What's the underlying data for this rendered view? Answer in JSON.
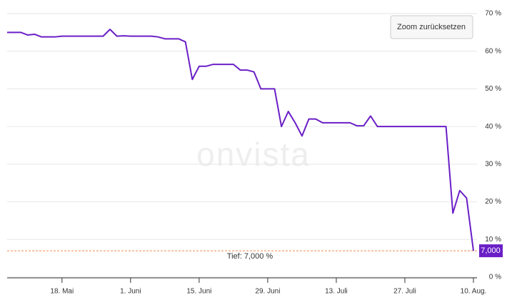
{
  "chart_data": {
    "type": "line",
    "categories": [
      null,
      null,
      null,
      null,
      null,
      null,
      null,
      null,
      "18. Mai",
      null,
      null,
      null,
      null,
      null,
      null,
      null,
      null,
      null,
      "1. Juni",
      null,
      null,
      null,
      null,
      null,
      null,
      null,
      null,
      null,
      "15. Juni",
      null,
      null,
      null,
      null,
      null,
      null,
      null,
      null,
      null,
      "29. Juni",
      null,
      null,
      null,
      null,
      null,
      null,
      null,
      null,
      null,
      "13. Juli",
      null,
      null,
      null,
      null,
      null,
      null,
      null,
      null,
      null,
      "27. Juli",
      null,
      null,
      null,
      null,
      null,
      null,
      null,
      null,
      null,
      "10. Aug."
    ],
    "series": [
      {
        "color": "#6a1fc6",
        "values": [
          65,
          65,
          65,
          64.3,
          64.5,
          63.8,
          63.8,
          63.8,
          64,
          64,
          64,
          64,
          64,
          64,
          64,
          65.8,
          64,
          64.1,
          64,
          64,
          64,
          64,
          63.8,
          63.3,
          63.3,
          63.3,
          62.5,
          52.5,
          56,
          56,
          56.5,
          56.5,
          56.5,
          56.5,
          55,
          55,
          54.5,
          50,
          50,
          50,
          40,
          44,
          41,
          37.5,
          42,
          42,
          41,
          41,
          41,
          41,
          41,
          40.2,
          40.2,
          42.8,
          40,
          40,
          40,
          40,
          40,
          40,
          40,
          40,
          40,
          40,
          40,
          17,
          23,
          21,
          7
        ]
      }
    ],
    "ylim": [
      0,
      70
    ],
    "yticks": [
      {
        "value": 0,
        "label": "0 %"
      },
      {
        "value": 10,
        "label": "10 %"
      },
      {
        "value": 20,
        "label": "20 %"
      },
      {
        "value": 30,
        "label": "30 %"
      },
      {
        "value": 40,
        "label": "40 %"
      },
      {
        "value": 50,
        "label": "50 %"
      },
      {
        "value": 60,
        "label": "60 %"
      },
      {
        "value": 70,
        "label": "70 %"
      }
    ],
    "grid": true,
    "low_line": {
      "value": 7,
      "label": "Tief: 7,000 %",
      "color": "#f08a4b"
    },
    "last_value": {
      "value": 7,
      "label": "7,000"
    },
    "watermark": "onvista",
    "button": "Zoom zurücksetzen"
  }
}
